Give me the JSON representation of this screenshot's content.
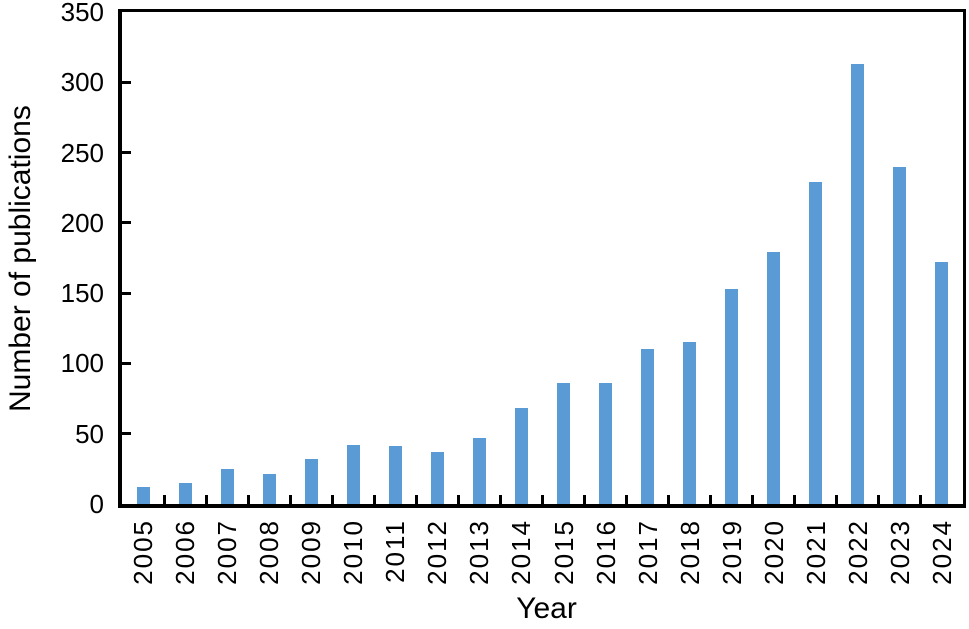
{
  "chart_data": {
    "type": "bar",
    "title": "",
    "xlabel": "Year",
    "ylabel": "Number of publications",
    "categories": [
      "2005",
      "2006",
      "2007",
      "2008",
      "2009",
      "2010",
      "2011",
      "2012",
      "2013",
      "2014",
      "2015",
      "2016",
      "2017",
      "2018",
      "2019",
      "2020",
      "2021",
      "2022",
      "2023",
      "2024"
    ],
    "values": [
      12,
      15,
      25,
      21,
      32,
      42,
      41,
      37,
      47,
      68,
      86,
      86,
      110,
      115,
      153,
      179,
      229,
      313,
      240,
      172
    ],
    "ylim": [
      0,
      350
    ],
    "ytick_step": 50,
    "yticks": [
      0,
      50,
      100,
      150,
      200,
      250,
      300,
      350
    ],
    "grid": false,
    "legend": "none",
    "bar_color": "#5B9BD5",
    "axis_color": "#000000",
    "background_color": "#FFFFFF",
    "x_labels_rotated_degrees": 90
  }
}
